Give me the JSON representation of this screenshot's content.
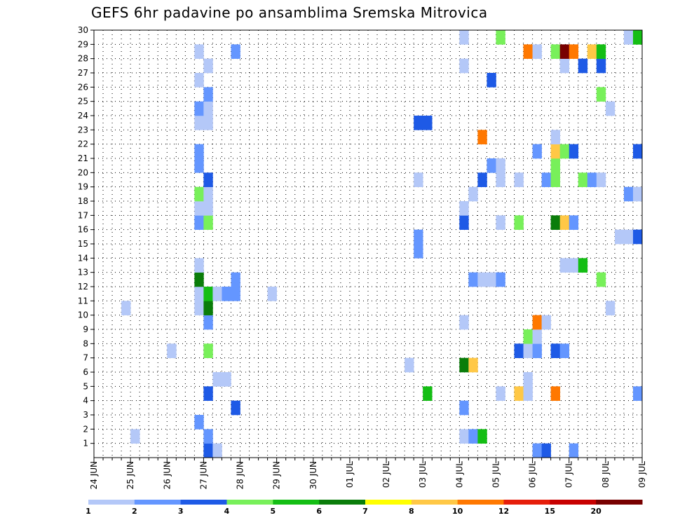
{
  "chart_data": {
    "type": "heatmap",
    "title": "GEFS 6hr padavine po ansamblima Sremska Mitrovica",
    "x_categories": [
      "24 JUN",
      "25 JUN",
      "26 JUN",
      "27 JUN",
      "28 JUN",
      "29 JUN",
      "30 JUN",
      "01 JUL",
      "02 JUL",
      "03 JUL",
      "04 JUL",
      "05 JUL",
      "06 JUL",
      "07 JUL",
      "08 JUL",
      "09 JUL"
    ],
    "steps_per_day": 4,
    "y_ticks": [
      1,
      2,
      3,
      4,
      5,
      6,
      7,
      8,
      9,
      10,
      11,
      12,
      13,
      14,
      15,
      16,
      17,
      18,
      19,
      20,
      21,
      22,
      23,
      24,
      25,
      26,
      27,
      28,
      29,
      30
    ],
    "ylim": [
      0,
      30
    ],
    "grid": "dotted",
    "legend": {
      "position": "bottom",
      "labels": [
        "1",
        "2",
        "3",
        "4",
        "5",
        "6",
        "7",
        "8",
        "10",
        "12",
        "15",
        "20"
      ],
      "colors": [
        "#b4c8f8",
        "#6496ff",
        "#1e5ae6",
        "#78f05a",
        "#14be14",
        "#0a7d0a",
        "#ffff00",
        "#ffc846",
        "#ff7800",
        "#e61e0a",
        "#c80000",
        "#780000"
      ]
    },
    "color_classes": {
      "a": "#b4c8f8",
      "b": "#6496ff",
      "c": "#1e5ae6",
      "d": "#78f05a",
      "e": "#14be14",
      "f": "#0a7d0a",
      "g": "#ffc846",
      "h": "#ff7800",
      "i": "#780000"
    },
    "cells": [
      {
        "member": 0,
        "step": 12,
        "v": "c"
      },
      {
        "member": 0,
        "step": 13,
        "v": "a"
      },
      {
        "member": 0,
        "step": 48,
        "v": "b"
      },
      {
        "member": 0,
        "step": 49,
        "v": "c"
      },
      {
        "member": 0,
        "step": 52,
        "v": "b"
      },
      {
        "member": 1,
        "step": 4,
        "v": "a"
      },
      {
        "member": 1,
        "step": 12,
        "v": "b"
      },
      {
        "member": 1,
        "step": 40,
        "v": "a"
      },
      {
        "member": 1,
        "step": 41,
        "v": "b"
      },
      {
        "member": 1,
        "step": 42,
        "v": "e"
      },
      {
        "member": 2,
        "step": 11,
        "v": "b"
      },
      {
        "member": 3,
        "step": 15,
        "v": "c"
      },
      {
        "member": 3,
        "step": 40,
        "v": "b"
      },
      {
        "member": 4,
        "step": 12,
        "v": "c"
      },
      {
        "member": 4,
        "step": 36,
        "v": "e"
      },
      {
        "member": 4,
        "step": 44,
        "v": "a"
      },
      {
        "member": 4,
        "step": 46,
        "v": "g"
      },
      {
        "member": 4,
        "step": 47,
        "v": "a"
      },
      {
        "member": 4,
        "step": 50,
        "v": "h"
      },
      {
        "member": 4,
        "step": 59,
        "v": "b"
      },
      {
        "member": 5,
        "step": 13,
        "v": "a"
      },
      {
        "member": 5,
        "step": 14,
        "v": "a"
      },
      {
        "member": 5,
        "step": 47,
        "v": "a"
      },
      {
        "member": 6,
        "step": 34,
        "v": "a"
      },
      {
        "member": 6,
        "step": 40,
        "v": "f"
      },
      {
        "member": 6,
        "step": 41,
        "v": "g"
      },
      {
        "member": 7,
        "step": 8,
        "v": "a"
      },
      {
        "member": 7,
        "step": 12,
        "v": "d"
      },
      {
        "member": 7,
        "step": 46,
        "v": "c"
      },
      {
        "member": 7,
        "step": 47,
        "v": "a"
      },
      {
        "member": 7,
        "step": 48,
        "v": "b"
      },
      {
        "member": 7,
        "step": 50,
        "v": "c"
      },
      {
        "member": 7,
        "step": 51,
        "v": "b"
      },
      {
        "member": 8,
        "step": 47,
        "v": "d"
      },
      {
        "member": 8,
        "step": 48,
        "v": "a"
      },
      {
        "member": 9,
        "step": 12,
        "v": "b"
      },
      {
        "member": 9,
        "step": 40,
        "v": "a"
      },
      {
        "member": 9,
        "step": 48,
        "v": "h"
      },
      {
        "member": 9,
        "step": 49,
        "v": "a"
      },
      {
        "member": 10,
        "step": 3,
        "v": "a"
      },
      {
        "member": 10,
        "step": 11,
        "v": "a"
      },
      {
        "member": 10,
        "step": 12,
        "v": "f"
      },
      {
        "member": 10,
        "step": 56,
        "v": "a"
      },
      {
        "member": 11,
        "step": 11,
        "v": "a"
      },
      {
        "member": 11,
        "step": 12,
        "v": "e"
      },
      {
        "member": 11,
        "step": 13,
        "v": "a"
      },
      {
        "member": 11,
        "step": 14,
        "v": "b"
      },
      {
        "member": 11,
        "step": 15,
        "v": "b"
      },
      {
        "member": 11,
        "step": 19,
        "v": "a"
      },
      {
        "member": 12,
        "step": 11,
        "v": "f"
      },
      {
        "member": 12,
        "step": 15,
        "v": "b"
      },
      {
        "member": 12,
        "step": 41,
        "v": "b"
      },
      {
        "member": 12,
        "step": 42,
        "v": "a"
      },
      {
        "member": 12,
        "step": 43,
        "v": "a"
      },
      {
        "member": 12,
        "step": 44,
        "v": "b"
      },
      {
        "member": 12,
        "step": 55,
        "v": "d"
      },
      {
        "member": 13,
        "step": 11,
        "v": "a"
      },
      {
        "member": 13,
        "step": 51,
        "v": "a"
      },
      {
        "member": 13,
        "step": 52,
        "v": "a"
      },
      {
        "member": 13,
        "step": 53,
        "v": "e"
      },
      {
        "member": 14,
        "step": 35,
        "v": "b"
      },
      {
        "member": 15,
        "step": 35,
        "v": "b"
      },
      {
        "member": 15,
        "step": 57,
        "v": "a"
      },
      {
        "member": 15,
        "step": 58,
        "v": "a"
      },
      {
        "member": 15,
        "step": 59,
        "v": "c"
      },
      {
        "member": 16,
        "step": 11,
        "v": "b"
      },
      {
        "member": 16,
        "step": 12,
        "v": "d"
      },
      {
        "member": 16,
        "step": 40,
        "v": "c"
      },
      {
        "member": 16,
        "step": 44,
        "v": "a"
      },
      {
        "member": 16,
        "step": 46,
        "v": "d"
      },
      {
        "member": 16,
        "step": 50,
        "v": "f"
      },
      {
        "member": 16,
        "step": 51,
        "v": "g"
      },
      {
        "member": 16,
        "step": 52,
        "v": "b"
      },
      {
        "member": 17,
        "step": 11,
        "v": "a"
      },
      {
        "member": 17,
        "step": 12,
        "v": "a"
      },
      {
        "member": 17,
        "step": 40,
        "v": "a"
      },
      {
        "member": 18,
        "step": 11,
        "v": "d"
      },
      {
        "member": 18,
        "step": 12,
        "v": "a"
      },
      {
        "member": 18,
        "step": 41,
        "v": "a"
      },
      {
        "member": 18,
        "step": 58,
        "v": "b"
      },
      {
        "member": 18,
        "step": 59,
        "v": "a"
      },
      {
        "member": 19,
        "step": 12,
        "v": "c"
      },
      {
        "member": 19,
        "step": 35,
        "v": "a"
      },
      {
        "member": 19,
        "step": 42,
        "v": "c"
      },
      {
        "member": 19,
        "step": 44,
        "v": "a"
      },
      {
        "member": 19,
        "step": 46,
        "v": "a"
      },
      {
        "member": 19,
        "step": 49,
        "v": "b"
      },
      {
        "member": 19,
        "step": 50,
        "v": "d"
      },
      {
        "member": 19,
        "step": 53,
        "v": "d"
      },
      {
        "member": 19,
        "step": 54,
        "v": "b"
      },
      {
        "member": 19,
        "step": 55,
        "v": "a"
      },
      {
        "member": 20,
        "step": 11,
        "v": "b"
      },
      {
        "member": 20,
        "step": 43,
        "v": "b"
      },
      {
        "member": 20,
        "step": 44,
        "v": "a"
      },
      {
        "member": 20,
        "step": 50,
        "v": "d"
      },
      {
        "member": 21,
        "step": 11,
        "v": "b"
      },
      {
        "member": 21,
        "step": 48,
        "v": "b"
      },
      {
        "member": 21,
        "step": 50,
        "v": "g"
      },
      {
        "member": 21,
        "step": 51,
        "v": "d"
      },
      {
        "member": 21,
        "step": 52,
        "v": "c"
      },
      {
        "member": 21,
        "step": 59,
        "v": "c"
      },
      {
        "member": 22,
        "step": 42,
        "v": "h"
      },
      {
        "member": 22,
        "step": 50,
        "v": "a"
      },
      {
        "member": 23,
        "step": 11,
        "v": "a"
      },
      {
        "member": 23,
        "step": 12,
        "v": "a"
      },
      {
        "member": 23,
        "step": 35,
        "v": "c"
      },
      {
        "member": 23,
        "step": 36,
        "v": "c"
      },
      {
        "member": 24,
        "step": 11,
        "v": "b"
      },
      {
        "member": 24,
        "step": 12,
        "v": "a"
      },
      {
        "member": 24,
        "step": 56,
        "v": "a"
      },
      {
        "member": 25,
        "step": 12,
        "v": "b"
      },
      {
        "member": 25,
        "step": 55,
        "v": "d"
      },
      {
        "member": 26,
        "step": 11,
        "v": "a"
      },
      {
        "member": 26,
        "step": 43,
        "v": "c"
      },
      {
        "member": 27,
        "step": 12,
        "v": "a"
      },
      {
        "member": 27,
        "step": 40,
        "v": "a"
      },
      {
        "member": 27,
        "step": 51,
        "v": "a"
      },
      {
        "member": 27,
        "step": 53,
        "v": "c"
      },
      {
        "member": 27,
        "step": 55,
        "v": "c"
      },
      {
        "member": 28,
        "step": 11,
        "v": "a"
      },
      {
        "member": 28,
        "step": 15,
        "v": "b"
      },
      {
        "member": 28,
        "step": 47,
        "v": "h"
      },
      {
        "member": 28,
        "step": 48,
        "v": "a"
      },
      {
        "member": 28,
        "step": 50,
        "v": "d"
      },
      {
        "member": 28,
        "step": 51,
        "v": "i"
      },
      {
        "member": 28,
        "step": 52,
        "v": "h"
      },
      {
        "member": 28,
        "step": 54,
        "v": "g"
      },
      {
        "member": 28,
        "step": 55,
        "v": "e"
      },
      {
        "member": 29,
        "step": 40,
        "v": "a"
      },
      {
        "member": 29,
        "step": 44,
        "v": "d"
      },
      {
        "member": 29,
        "step": 58,
        "v": "a"
      },
      {
        "member": 29,
        "step": 59,
        "v": "e"
      }
    ]
  }
}
